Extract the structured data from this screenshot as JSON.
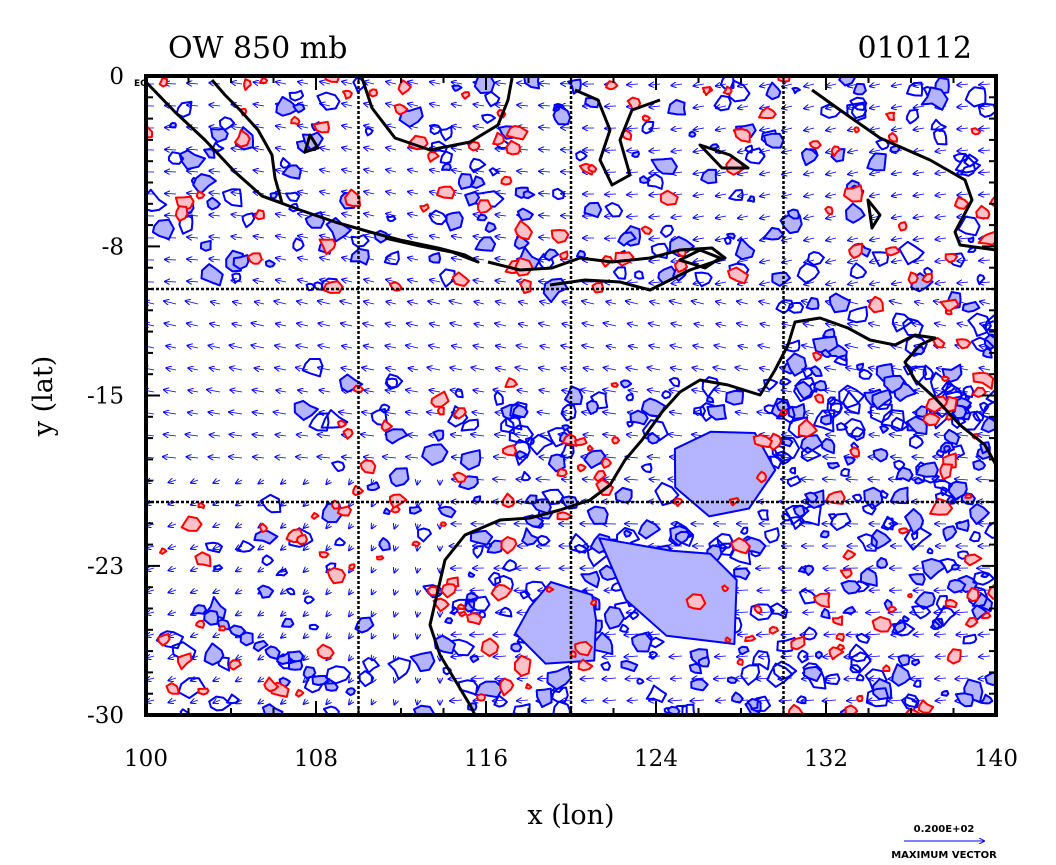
{
  "title_left": "OW 850 mb",
  "title_right": "010112",
  "equator_label": "EQ",
  "xlabel": "x (lon)",
  "ylabel": "y (lat)",
  "x_ticks": [
    "100",
    "108",
    "116",
    "124",
    "132",
    "140"
  ],
  "y_ticks": [
    "0",
    "-8",
    "-15",
    "-23",
    "-30"
  ],
  "legend": {
    "value": "0.200E+02",
    "label": "MAXIMUM VECTOR"
  },
  "colors": {
    "positive": "#ff0000",
    "positive_fill": "#ffc0c8",
    "negative": "#0000ff",
    "negative_fill": "#b4b4ff",
    "coast": "#000000"
  },
  "chart_data": {
    "type": "contour-vector-map",
    "title": "OW 850 mb",
    "date": "010112",
    "xlabel": "x (lon)",
    "ylabel": "y (lat)",
    "xlim": [
      100,
      140
    ],
    "ylim": [
      -30,
      0
    ],
    "x_ticks": [
      100,
      108,
      116,
      124,
      132,
      140
    ],
    "y_ticks": [
      0,
      -8,
      -15,
      -23,
      -30
    ],
    "grid_lon": [
      110,
      120,
      130
    ],
    "grid_lat": [
      -10,
      -20
    ],
    "max_vector": "0.200E+02"
  }
}
